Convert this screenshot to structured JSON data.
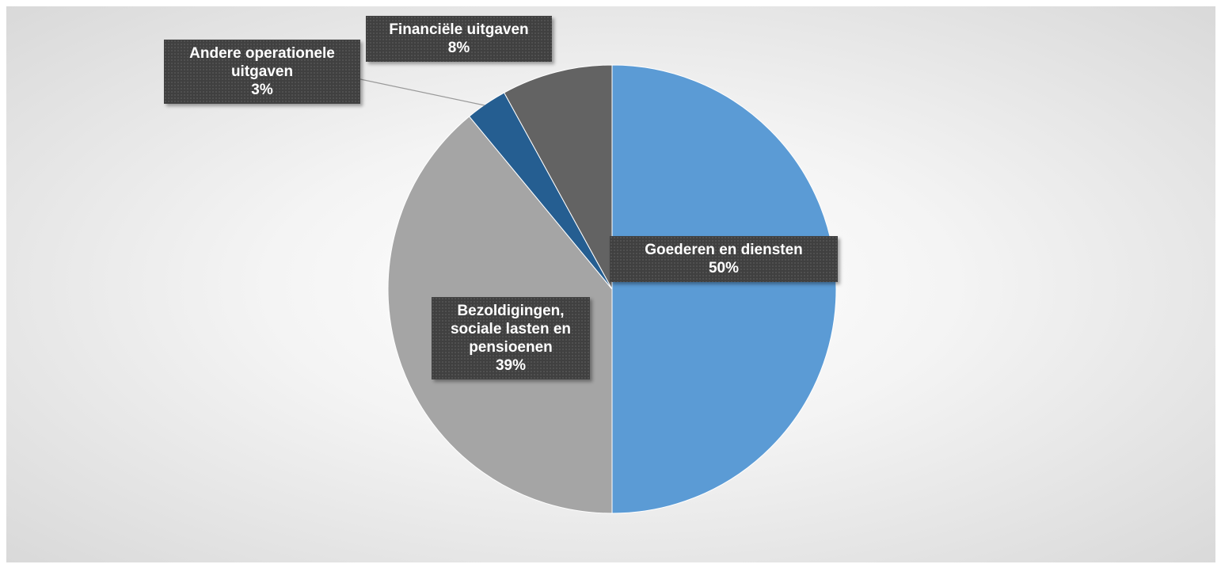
{
  "chart_data": {
    "type": "pie",
    "categories": [
      "Goederen en diensten",
      "Bezoldigingen, sociale lasten en pensioenen",
      "Andere operationele uitgaven",
      "Financiële uitgaven"
    ],
    "values": [
      50,
      39,
      3,
      8
    ],
    "value_labels": [
      "50%",
      "39%",
      "3%",
      "8%"
    ],
    "colors": [
      "#5b9bd5",
      "#a5a5a5",
      "#255e91",
      "#636363"
    ]
  }
}
